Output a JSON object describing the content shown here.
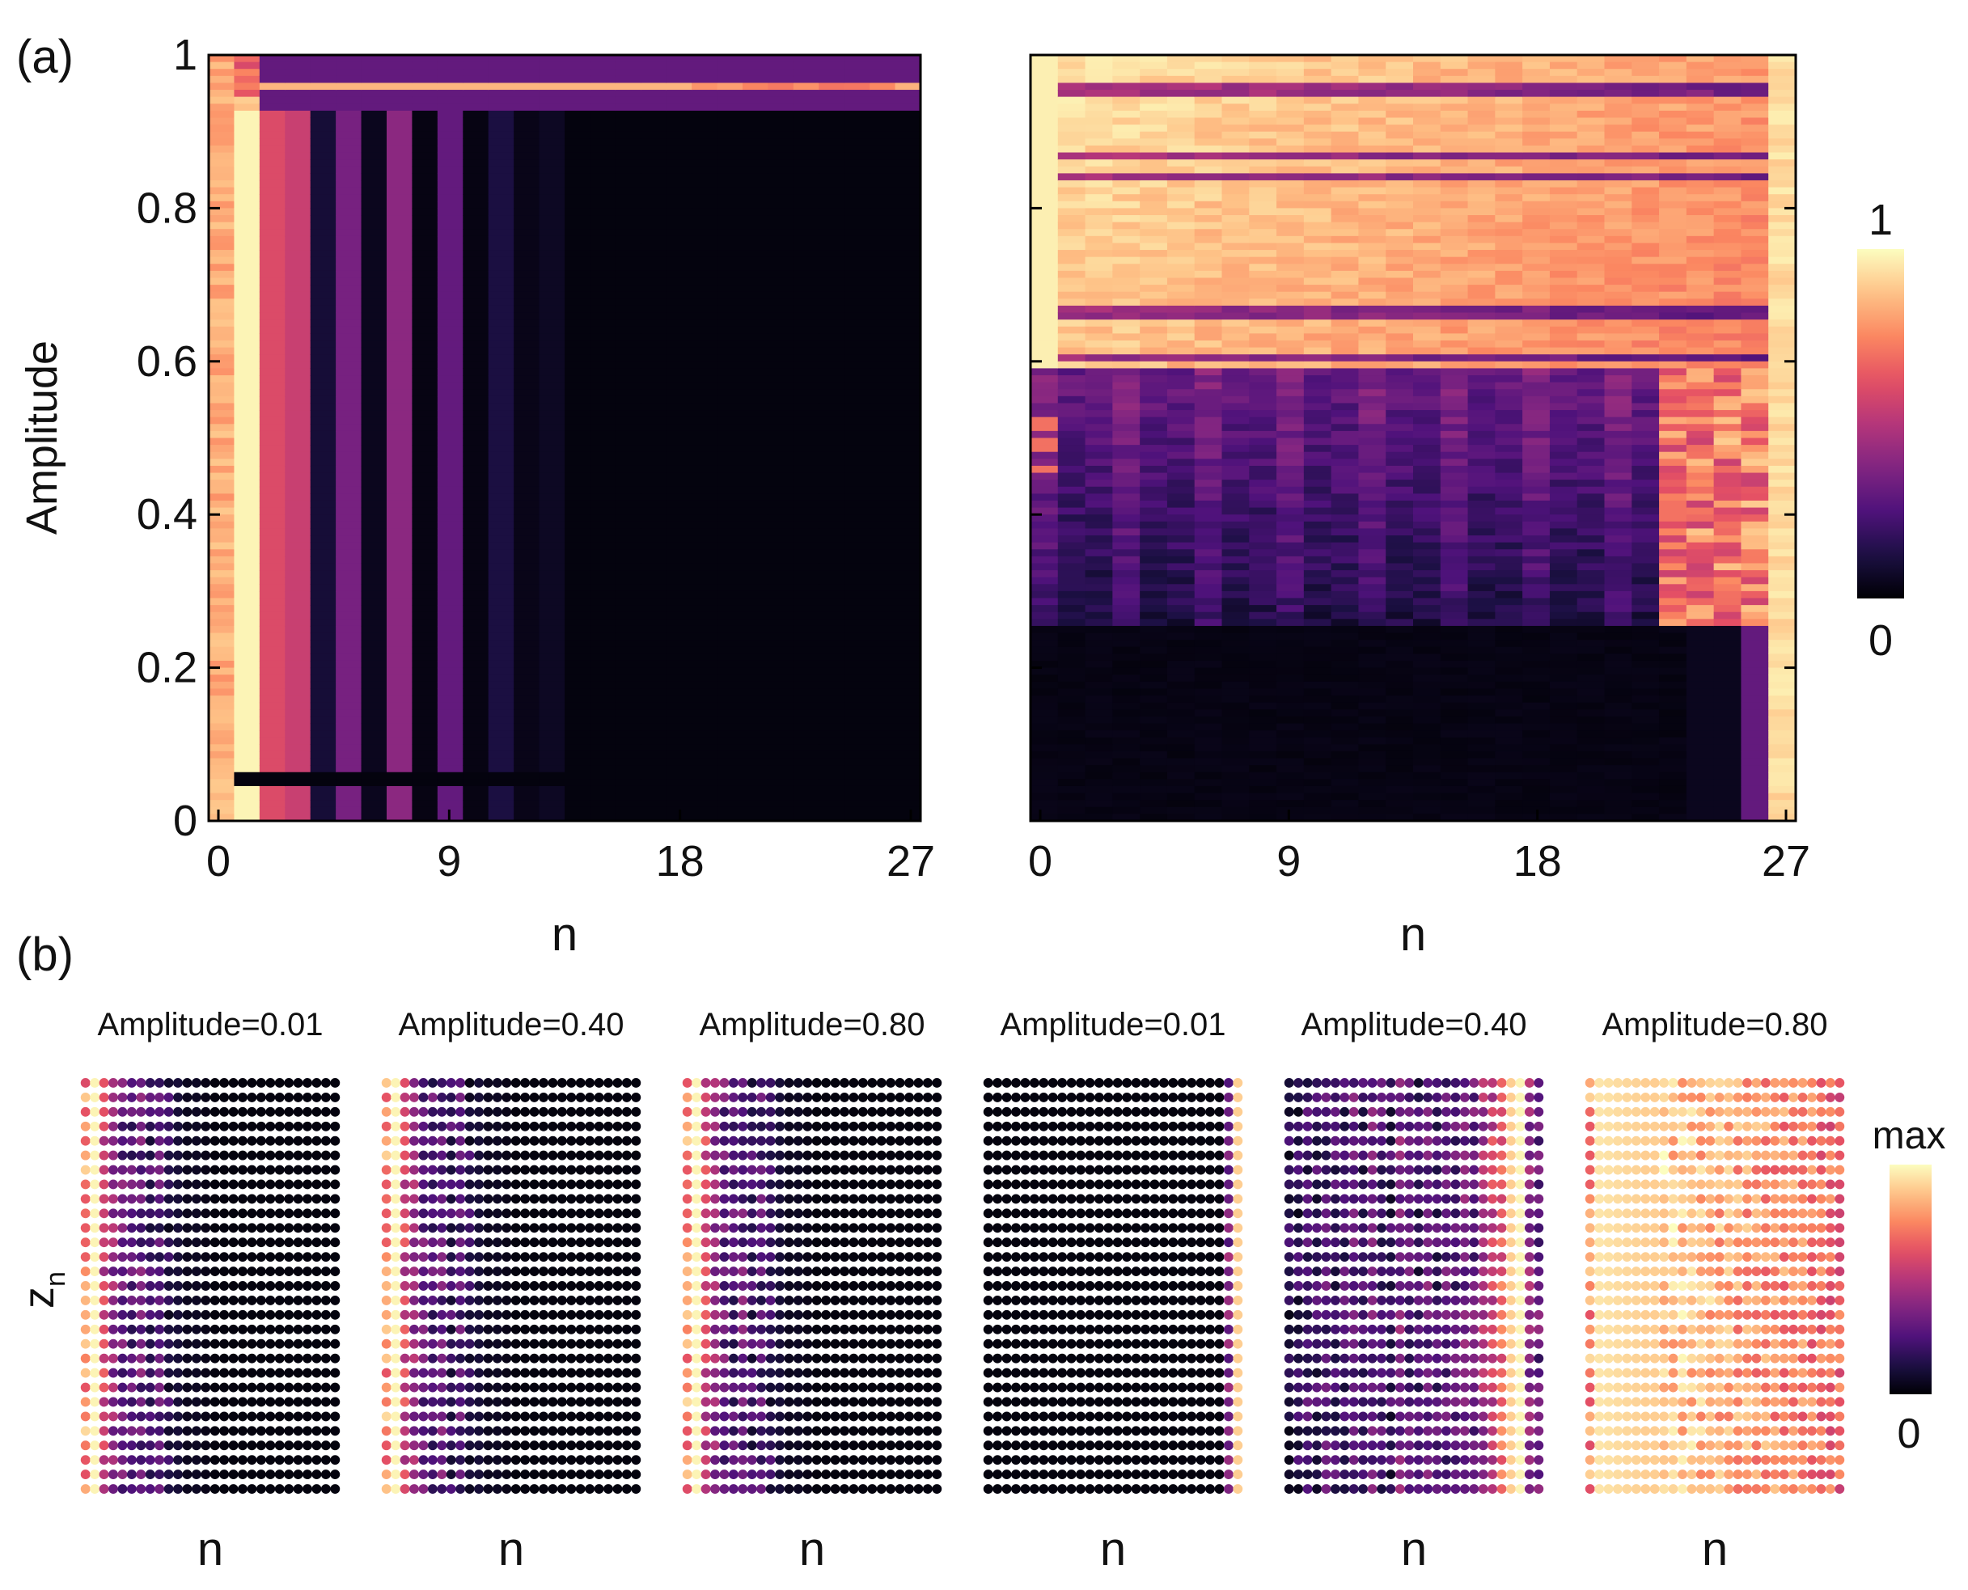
{
  "panel_labels": {
    "a": "(a)",
    "b": "(b)"
  },
  "colormap": {
    "name": "magma",
    "stops": [
      "#000004",
      "#1c1044",
      "#4f127b",
      "#812581",
      "#b5367a",
      "#e55064",
      "#fb8761",
      "#fec287",
      "#fcfdbf"
    ]
  },
  "chart_data": [
    {
      "id": "panel-a-left",
      "type": "heatmap",
      "title": "",
      "xlabel": "n",
      "ylabel": "Amplitude",
      "x_ticks": [
        "0",
        "9",
        "18",
        "27"
      ],
      "y_ticks": [
        "0",
        "0.2",
        "0.4",
        "0.6",
        "0.8",
        "1"
      ],
      "xlim": [
        0,
        27
      ],
      "ylim": [
        0,
        1
      ],
      "n_sites": 28,
      "site_profile": [
        0.83,
        0.98,
        0.6,
        0.55,
        0.1,
        0.35,
        0.05,
        0.4,
        0.03,
        0.3,
        0.03,
        0.12,
        0.04,
        0.06,
        0.02,
        0.02,
        0.02,
        0.02,
        0.02,
        0.02,
        0.02,
        0.02,
        0.02,
        0.02,
        0.02,
        0.02,
        0.02,
        0.02
      ],
      "features": [
        {
          "amplitude_range": [
            0.045,
            0.06
          ],
          "sites": [
            1,
            13
          ],
          "value": 0.02,
          "note": "dark band at low amplitude"
        },
        {
          "amplitude_range": [
            0.93,
            1.0
          ],
          "sites": [
            2,
            27
          ],
          "value": 0.3,
          "note": "purple band near amplitude 1"
        },
        {
          "amplitude_range": [
            0.955,
            0.965
          ],
          "sites": [
            2,
            27
          ],
          "value": 0.85,
          "note": "bright stripe near amplitude 0.96"
        }
      ]
    },
    {
      "id": "panel-a-right",
      "type": "heatmap",
      "title": "",
      "xlabel": "n",
      "ylabel": "",
      "x_ticks": [
        "0",
        "9",
        "18",
        "27"
      ],
      "y_ticks": [
        "0",
        "0.2",
        "0.4",
        "0.6",
        "0.8",
        "1"
      ],
      "xlim": [
        0,
        27
      ],
      "ylim": [
        0,
        1
      ],
      "n_sites": 28,
      "regions": [
        {
          "amplitude_range": [
            0.0,
            0.25
          ],
          "value": 0.02,
          "note": "dark except rightmost sites"
        },
        {
          "amplitude_range": [
            0.25,
            0.59
          ],
          "value": 0.3,
          "note": "purple striped region"
        },
        {
          "amplitude_range": [
            0.59,
            1.0
          ],
          "value": 0.85,
          "note": "bright orange with stripes"
        }
      ],
      "edge_site_value": 0.97
    },
    {
      "id": "colorbar-a",
      "type": "colorbar",
      "max_label": "1",
      "min_label": "0"
    },
    {
      "id": "panel-b",
      "type": "scatter",
      "ylabel": "z",
      "ylabel_sub": "n",
      "xlabel": "n",
      "rows": 29,
      "cols": 28,
      "subplots": [
        {
          "title": "Amplitude=0.01",
          "xlabel": "n",
          "profile": [
            0.8,
            0.98,
            0.55,
            0.4,
            0.3,
            0.25,
            0.3,
            0.2,
            0.25,
            0.15,
            0.1,
            0.05,
            0.06,
            0.04,
            0.02,
            0.02,
            0.02,
            0.02,
            0.02,
            0.02,
            0.02,
            0.02,
            0.02,
            0.02,
            0.02,
            0.02,
            0.02,
            0.02
          ]
        },
        {
          "title": "Amplitude=0.40",
          "xlabel": "n",
          "profile": [
            0.8,
            0.98,
            0.55,
            0.4,
            0.3,
            0.25,
            0.3,
            0.2,
            0.25,
            0.15,
            0.1,
            0.05,
            0.06,
            0.04,
            0.02,
            0.02,
            0.02,
            0.02,
            0.02,
            0.02,
            0.02,
            0.02,
            0.02,
            0.02,
            0.02,
            0.02,
            0.02,
            0.02
          ]
        },
        {
          "title": "Amplitude=0.80",
          "xlabel": "n",
          "profile": [
            0.8,
            0.98,
            0.55,
            0.4,
            0.3,
            0.25,
            0.3,
            0.2,
            0.25,
            0.15,
            0.1,
            0.05,
            0.06,
            0.04,
            0.02,
            0.02,
            0.02,
            0.02,
            0.02,
            0.02,
            0.02,
            0.02,
            0.02,
            0.02,
            0.02,
            0.02,
            0.02,
            0.02
          ]
        },
        {
          "title": "Amplitude=0.01",
          "xlabel": "n",
          "profile": [
            0.02,
            0.02,
            0.02,
            0.02,
            0.02,
            0.02,
            0.02,
            0.02,
            0.02,
            0.02,
            0.02,
            0.02,
            0.02,
            0.02,
            0.02,
            0.02,
            0.02,
            0.02,
            0.02,
            0.02,
            0.02,
            0.02,
            0.02,
            0.02,
            0.02,
            0.02,
            0.35,
            0.9
          ]
        },
        {
          "title": "Amplitude=0.40",
          "xlabel": "n",
          "profile": [
            0.15,
            0.16,
            0.2,
            0.18,
            0.25,
            0.2,
            0.22,
            0.28,
            0.2,
            0.3,
            0.22,
            0.18,
            0.35,
            0.25,
            0.2,
            0.3,
            0.22,
            0.28,
            0.25,
            0.35,
            0.3,
            0.45,
            0.55,
            0.65,
            0.9,
            0.98,
            0.4,
            0.3
          ]
        },
        {
          "title": "Amplitude=0.80",
          "xlabel": "n",
          "profile": [
            0.95,
            0.95,
            0.94,
            0.93,
            0.92,
            0.91,
            0.9,
            0.9,
            0.89,
            0.88,
            0.87,
            0.86,
            0.85,
            0.84,
            0.83,
            0.82,
            0.8,
            0.79,
            0.78,
            0.77,
            0.76,
            0.75,
            0.74,
            0.73,
            0.72,
            0.7,
            0.68,
            0.66
          ]
        }
      ]
    },
    {
      "id": "colorbar-b",
      "type": "colorbar",
      "max_label": "max",
      "min_label": "0"
    }
  ]
}
